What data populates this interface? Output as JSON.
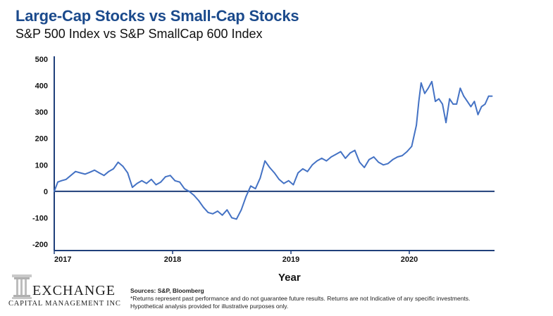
{
  "header": {
    "title": "Large-Cap Stocks vs Small-Cap Stocks",
    "subtitle": "S&P 500 Index vs S&P SmallCap 600 Index"
  },
  "chart_data": {
    "type": "line",
    "title": "Large-Cap Stocks vs Small-Cap Stocks",
    "subtitle": "S&P 500 Index vs S&P SmallCap 600 Index",
    "xlabel": "Year",
    "ylabel": "",
    "ylim": [
      -200,
      500
    ],
    "xlim": [
      2017.0,
      2020.72
    ],
    "y_ticks": [
      500,
      400,
      300,
      200,
      100,
      0,
      -100,
      -200
    ],
    "y_tick_labels": [
      "500",
      "400",
      "300",
      "200",
      "100",
      "0",
      "-100",
      "-200"
    ],
    "x_ticks": [
      2017,
      2018,
      2019,
      2020
    ],
    "x_tick_labels": [
      "2017",
      "2018",
      "2019",
      "2020"
    ],
    "grid": false,
    "series": [
      {
        "name": "S&P 500 vs S&P SmallCap 600",
        "color": "#4472c4",
        "x": [
          2017.0,
          2017.03,
          2017.06,
          2017.1,
          2017.14,
          2017.18,
          2017.22,
          2017.26,
          2017.3,
          2017.34,
          2017.38,
          2017.42,
          2017.46,
          2017.5,
          2017.54,
          2017.58,
          2017.62,
          2017.66,
          2017.7,
          2017.74,
          2017.78,
          2017.82,
          2017.86,
          2017.9,
          2017.94,
          2017.98,
          2018.02,
          2018.06,
          2018.1,
          2018.14,
          2018.18,
          2018.22,
          2018.26,
          2018.3,
          2018.34,
          2018.38,
          2018.42,
          2018.46,
          2018.5,
          2018.54,
          2018.58,
          2018.62,
          2018.66,
          2018.7,
          2018.74,
          2018.78,
          2018.82,
          2018.86,
          2018.9,
          2018.94,
          2018.98,
          2019.02,
          2019.06,
          2019.1,
          2019.14,
          2019.18,
          2019.22,
          2019.26,
          2019.3,
          2019.34,
          2019.38,
          2019.42,
          2019.46,
          2019.5,
          2019.54,
          2019.58,
          2019.62,
          2019.66,
          2019.7,
          2019.74,
          2019.78,
          2019.82,
          2019.86,
          2019.9,
          2019.94,
          2019.98,
          2020.02,
          2020.06,
          2020.08,
          2020.1,
          2020.13,
          2020.16,
          2020.19,
          2020.22,
          2020.25,
          2020.28,
          2020.31,
          2020.34,
          2020.37,
          2020.4,
          2020.43,
          2020.46,
          2020.49,
          2020.52,
          2020.55,
          2020.58,
          2020.61,
          2020.64,
          2020.67,
          2020.7
        ],
        "values": [
          0,
          35,
          40,
          45,
          60,
          75,
          70,
          65,
          72,
          80,
          70,
          60,
          75,
          85,
          110,
          95,
          70,
          15,
          30,
          40,
          30,
          45,
          25,
          35,
          55,
          60,
          40,
          35,
          10,
          0,
          -15,
          -35,
          -60,
          -80,
          -85,
          -75,
          -90,
          -70,
          -100,
          -105,
          -70,
          -20,
          20,
          10,
          50,
          115,
          90,
          70,
          45,
          30,
          40,
          25,
          70,
          85,
          75,
          100,
          115,
          125,
          115,
          130,
          140,
          150,
          125,
          145,
          155,
          110,
          90,
          120,
          130,
          110,
          100,
          105,
          120,
          130,
          135,
          150,
          170,
          250,
          340,
          410,
          370,
          390,
          415,
          340,
          350,
          330,
          260,
          350,
          330,
          330,
          390,
          360,
          340,
          320,
          340,
          290,
          320,
          330,
          360,
          360
        ]
      }
    ]
  },
  "logo": {
    "word": "EXCHANGE",
    "sub": "CAPITAL MANAGEMENT INC"
  },
  "footer": {
    "sources": "Sources: S&P, Bloomberg",
    "note1": "*Returns represent past performance and do not guarantee future results. Returns are not Indicative of any specific investments.",
    "note2": "Hypothetical analysis provided for illustrative purposes only."
  }
}
